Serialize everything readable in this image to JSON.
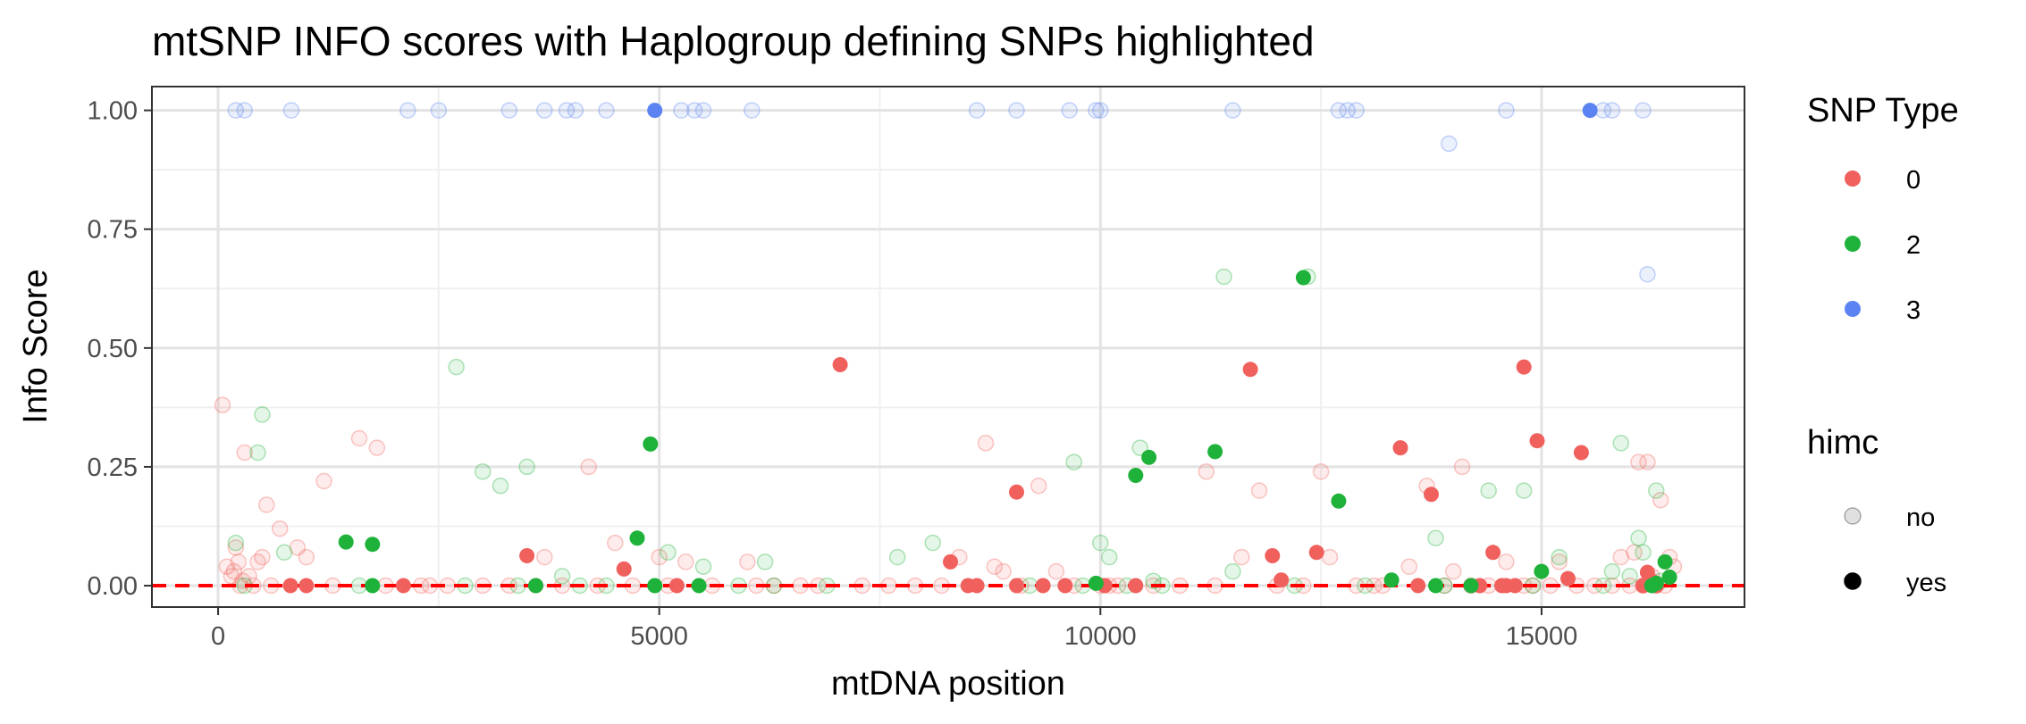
{
  "chart_data": {
    "type": "scatter",
    "title": "mtSNP INFO scores with Haplogroup defining SNPs highlighted",
    "xlabel": "mtDNA position",
    "ylabel": "Info Score",
    "xlim": [
      -750,
      17300
    ],
    "ylim": [
      -0.045,
      1.05
    ],
    "x_ticks": [
      "0",
      "5000",
      "10000",
      "15000"
    ],
    "y_ticks": [
      "0.00",
      "0.25",
      "0.50",
      "0.75",
      "1.00"
    ],
    "grid": true,
    "reference_line": {
      "y": 0,
      "color": "#ff0000",
      "style": "dashed"
    },
    "legend": {
      "placement": "right",
      "snp_type": {
        "title": "SNP Type",
        "entries": [
          {
            "label": "0",
            "color": "#f0605d"
          },
          {
            "label": "2",
            "color": "#1fb23a"
          },
          {
            "label": "3",
            "color": "#5b84f2"
          }
        ]
      },
      "himc": {
        "title": "himc",
        "entries": [
          {
            "label": "no",
            "alpha": 0.12
          },
          {
            "label": "yes",
            "alpha": 1.0
          }
        ]
      }
    },
    "series": [
      {
        "snp_type": "0",
        "himc": "yes",
        "x": [
          820,
          1000,
          2100,
          3500,
          3600,
          4600,
          5200,
          7050,
          8300,
          8500,
          8600,
          9050,
          9050,
          9350,
          9600,
          10050,
          10400,
          11700,
          11950,
          12050,
          12450,
          13400,
          13600,
          13750,
          14300,
          14450,
          14550,
          14600,
          14700,
          14800,
          14950,
          15300,
          15450,
          16150,
          16200,
          16250,
          16300
        ],
        "y": [
          0.0,
          0.0,
          0.0,
          0.063,
          0.0,
          0.035,
          0.0,
          0.465,
          0.05,
          0.0,
          0.0,
          0.197,
          0.0,
          0.0,
          0.0,
          0.0,
          0.0,
          0.455,
          0.063,
          0.012,
          0.07,
          0.29,
          0.0,
          0.192,
          0.0,
          0.07,
          0.0,
          0.0,
          0.0,
          0.46,
          0.305,
          0.015,
          0.28,
          0.0,
          0.028,
          0.01,
          0.0
        ]
      },
      {
        "snp_type": "2",
        "himc": "yes",
        "x": [
          1450,
          1750,
          1750,
          3600,
          4750,
          4900,
          4950,
          5450,
          9950,
          10400,
          10550,
          11300,
          12300,
          12700,
          13300,
          13800,
          14200,
          15000,
          16250,
          16300,
          16400,
          16450
        ],
        "y": [
          0.092,
          0.087,
          0.0,
          0.0,
          0.1,
          0.298,
          0.0,
          0.0,
          0.005,
          0.232,
          0.27,
          0.282,
          0.648,
          0.178,
          0.012,
          0.0,
          0.0,
          0.03,
          0.0,
          0.005,
          0.05,
          0.018
        ]
      },
      {
        "snp_type": "3",
        "himc": "yes",
        "x": [
          4950,
          15550
        ],
        "y": [
          1.0,
          1.0
        ]
      },
      {
        "snp_type": "0",
        "himc": "no",
        "x": [
          50,
          100,
          150,
          180,
          200,
          230,
          250,
          280,
          300,
          350,
          400,
          450,
          500,
          550,
          600,
          700,
          900,
          1000,
          1200,
          1300,
          1600,
          1800,
          1900,
          2300,
          2400,
          2600,
          3000,
          3300,
          3700,
          3900,
          4200,
          4300,
          4500,
          4700,
          5000,
          5100,
          5300,
          5600,
          6000,
          6100,
          6300,
          6600,
          6800,
          7300,
          7600,
          7900,
          8200,
          8400,
          8700,
          8800,
          8900,
          9100,
          9300,
          9500,
          9700,
          10000,
          10100,
          10200,
          10600,
          10900,
          11200,
          11300,
          11600,
          11800,
          12000,
          12300,
          12500,
          12600,
          12900,
          13100,
          13200,
          13500,
          13700,
          13900,
          14000,
          14100,
          14200,
          14400,
          14600,
          14800,
          14900,
          15100,
          15200,
          15400,
          15600,
          15800,
          15900,
          16000,
          16050,
          16100,
          16150,
          16200,
          16250,
          16300,
          16350,
          16400,
          16450,
          16500
        ],
        "y": [
          0.38,
          0.04,
          0.02,
          0.03,
          0.08,
          0.05,
          0.0,
          0.01,
          0.28,
          0.02,
          0.0,
          0.05,
          0.06,
          0.17,
          0.0,
          0.12,
          0.08,
          0.06,
          0.22,
          0.0,
          0.31,
          0.29,
          0.0,
          0.0,
          0.0,
          0.0,
          0.0,
          0.0,
          0.06,
          0.0,
          0.25,
          0.0,
          0.09,
          0.0,
          0.06,
          0.0,
          0.05,
          0.0,
          0.05,
          0.0,
          0.0,
          0.0,
          0.0,
          0.0,
          0.0,
          0.0,
          0.0,
          0.06,
          0.3,
          0.04,
          0.03,
          0.0,
          0.21,
          0.03,
          0.0,
          0.0,
          0.0,
          0.0,
          0.0,
          0.0,
          0.24,
          0.0,
          0.06,
          0.2,
          0.0,
          0.0,
          0.24,
          0.06,
          0.0,
          0.0,
          0.0,
          0.04,
          0.21,
          0.0,
          0.03,
          0.25,
          0.0,
          0.0,
          0.05,
          0.0,
          0.0,
          0.0,
          0.05,
          0.0,
          0.0,
          0.0,
          0.06,
          0.0,
          0.07,
          0.26,
          0.0,
          0.26,
          0.02,
          0.0,
          0.18,
          0.0,
          0.06,
          0.04
        ]
      },
      {
        "snp_type": "2",
        "himc": "no",
        "x": [
          200,
          300,
          450,
          500,
          750,
          1600,
          2700,
          2800,
          3000,
          3200,
          3400,
          3500,
          3900,
          4100,
          4400,
          5100,
          5500,
          5900,
          6200,
          6300,
          6900,
          7700,
          8100,
          9200,
          9700,
          9800,
          10000,
          10100,
          10300,
          10450,
          10600,
          10700,
          11400,
          11500,
          12200,
          12350,
          13000,
          13800,
          13900,
          14400,
          14800,
          14900,
          15200,
          15700,
          15800,
          15900,
          16000,
          16100,
          16150,
          16300,
          16350
        ],
        "y": [
          0.09,
          0.0,
          0.28,
          0.36,
          0.07,
          0.0,
          0.46,
          0.0,
          0.24,
          0.21,
          0.0,
          0.25,
          0.02,
          0.0,
          0.0,
          0.07,
          0.04,
          0.0,
          0.05,
          0.0,
          0.0,
          0.06,
          0.09,
          0.0,
          0.26,
          0.0,
          0.09,
          0.06,
          0.0,
          0.29,
          0.01,
          0.0,
          0.65,
          0.03,
          0.0,
          0.65,
          0.0,
          0.1,
          0.0,
          0.2,
          0.2,
          0.0,
          0.06,
          0.0,
          0.03,
          0.3,
          0.02,
          0.1,
          0.07,
          0.2,
          0.01
        ]
      },
      {
        "snp_type": "3",
        "himc": "no",
        "x": [
          200,
          300,
          830,
          2150,
          2500,
          3300,
          3700,
          3950,
          4050,
          4400,
          5250,
          5400,
          5500,
          6050,
          8600,
          9050,
          9650,
          9950,
          10000,
          11500,
          12700,
          12800,
          12900,
          13950,
          14600,
          15700,
          15800,
          16150,
          16200
        ],
        "y": [
          1.0,
          1.0,
          1.0,
          1.0,
          1.0,
          1.0,
          1.0,
          1.0,
          1.0,
          1.0,
          1.0,
          1.0,
          1.0,
          1.0,
          1.0,
          1.0,
          1.0,
          1.0,
          1.0,
          1.0,
          1.0,
          1.0,
          1.0,
          0.93,
          1.0,
          1.0,
          1.0,
          1.0,
          0.655
        ]
      }
    ]
  }
}
